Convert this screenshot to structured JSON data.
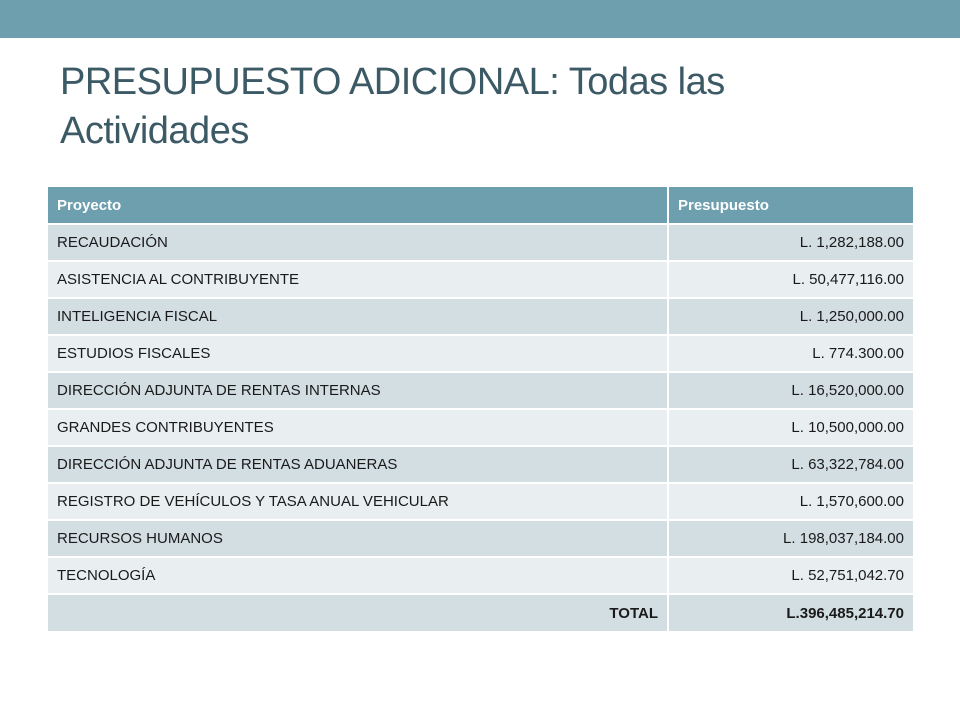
{
  "title": "PRESUPUESTO  ADICIONAL: Todas las Actividades",
  "table": {
    "headers": [
      "Proyecto",
      "Presupuesto"
    ],
    "rows": [
      {
        "project": "RECAUDACIÓN",
        "budget": "L. 1,282,188.00"
      },
      {
        "project": "ASISTENCIA AL CONTRIBUYENTE",
        "budget": "L. 50,477,116.00"
      },
      {
        "project": "INTELIGENCIA FISCAL",
        "budget": "L. 1,250,000.00"
      },
      {
        "project": "ESTUDIOS FISCALES",
        "budget": "L. 774.300.00"
      },
      {
        "project": "DIRECCIÓN ADJUNTA DE RENTAS INTERNAS",
        "budget": "L. 16,520,000.00"
      },
      {
        "project": "GRANDES CONTRIBUYENTES",
        "budget": "L. 10,500,000.00"
      },
      {
        "project": "DIRECCIÓN ADJUNTA DE RENTAS ADUANERAS",
        "budget": "L. 63,322,784.00"
      },
      {
        "project": "REGISTRO DE VEHÍCULOS Y TASA ANUAL VEHICULAR",
        "budget": "L. 1,570,600.00"
      },
      {
        "project": "RECURSOS HUMANOS",
        "budget": "L. 198,037,184.00"
      },
      {
        "project": "TECNOLOGÍA",
        "budget": "L. 52,751,042.70"
      }
    ],
    "total_label": "TOTAL",
    "total_value": "L.396,485,214.70"
  },
  "colors": {
    "accent": "#6e9fae",
    "title": "#3c5a66",
    "row_dark": "#d3dee3",
    "row_light": "#e9eef1"
  }
}
